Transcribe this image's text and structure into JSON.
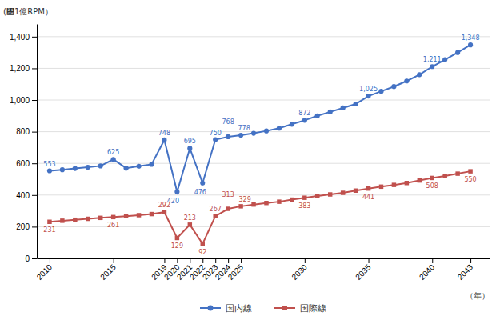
{
  "chart_data": {
    "type": "line",
    "x": [
      2010,
      2011,
      2012,
      2013,
      2014,
      2015,
      2016,
      2017,
      2018,
      2019,
      2020,
      2021,
      2022,
      2023,
      2024,
      2025,
      2026,
      2027,
      2028,
      2029,
      2030,
      2031,
      2032,
      2033,
      2034,
      2035,
      2036,
      2037,
      2038,
      2039,
      2040,
      2041,
      2042,
      2043
    ],
    "series": [
      {
        "name": "国内線",
        "color": "#4472C4",
        "marker": "circle",
        "values": [
          553,
          560,
          568,
          576,
          584,
          625,
          570,
          582,
          594,
          748,
          420,
          695,
          476,
          750,
          768,
          778,
          790,
          805,
          822,
          847,
          872,
          900,
          925,
          950,
          975,
          1025,
          1055,
          1085,
          1120,
          1160,
          1211,
          1255,
          1300,
          1348
        ],
        "value_labels": [
          "553",
          null,
          null,
          null,
          null,
          "625",
          null,
          null,
          null,
          "748",
          "420",
          "695",
          "476",
          "750",
          "768",
          "778",
          null,
          null,
          null,
          null,
          "872",
          null,
          null,
          null,
          null,
          "1,025",
          null,
          null,
          null,
          null,
          "1,211",
          null,
          null,
          "1,348"
        ]
      },
      {
        "name": "国際線",
        "color": "#C0504D",
        "marker": "square",
        "values": [
          231,
          238,
          244,
          250,
          256,
          261,
          267,
          273,
          280,
          292,
          129,
          213,
          92,
          267,
          313,
          329,
          340,
          350,
          358,
          371,
          383,
          394,
          404,
          414,
          428,
          441,
          453,
          464,
          476,
          492,
          508,
          520,
          535,
          550
        ],
        "value_labels": [
          "231",
          null,
          null,
          null,
          null,
          "261",
          null,
          null,
          null,
          "292",
          "129",
          "213",
          "92",
          "267",
          "313",
          "329",
          null,
          null,
          null,
          null,
          "383",
          null,
          null,
          null,
          null,
          "441",
          null,
          null,
          null,
          null,
          "508",
          null,
          null,
          "550"
        ]
      }
    ],
    "x_label": "（年）",
    "y_label": "(㄄1億RPM）",
    "xlim": [
      2009.0,
      2044.5
    ],
    "xticks": [
      2010,
      2015,
      2019,
      2020,
      2021,
      2022,
      2023,
      2024,
      2025,
      2030,
      2035,
      2040,
      2043
    ],
    "ylim": [
      0,
      1480
    ],
    "yticks": [
      0,
      200,
      400,
      600,
      800,
      {
        "value": 1000,
        "label": "1,000"
      },
      {
        "value": 1200,
        "label": "1,200"
      },
      {
        "value": 1400,
        "label": "1,400"
      }
    ],
    "grid": true,
    "legend": "bottom",
    "data_labels": true
  }
}
